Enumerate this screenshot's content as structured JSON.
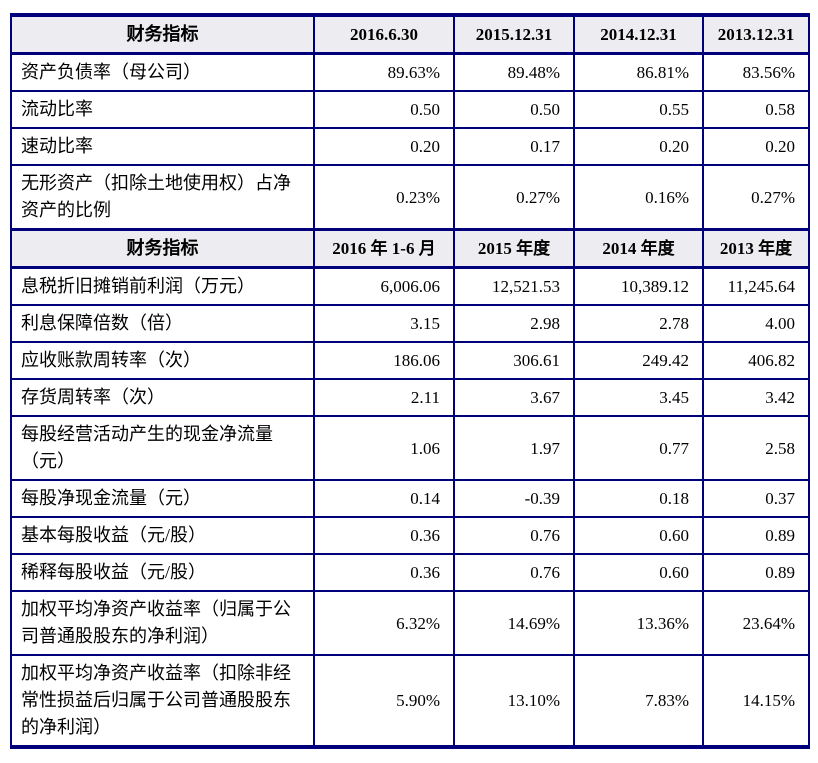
{
  "colors": {
    "border": "#00007d",
    "header_bg": "#ededf1",
    "text": "#000000",
    "background": "#ffffff"
  },
  "table": {
    "sections": [
      {
        "header": [
          "财务指标",
          "2016.6.30",
          "2015.12.31",
          "2014.12.31",
          "2013.12.31"
        ],
        "rows": [
          {
            "label": "资产负债率（母公司）",
            "values": [
              "89.63%",
              "89.48%",
              "86.81%",
              "83.56%"
            ]
          },
          {
            "label": "流动比率",
            "values": [
              "0.50",
              "0.50",
              "0.55",
              "0.58"
            ]
          },
          {
            "label": "速动比率",
            "values": [
              "0.20",
              "0.17",
              "0.20",
              "0.20"
            ]
          },
          {
            "label": "无形资产（扣除土地使用权）占净资产的比例",
            "values": [
              "0.23%",
              "0.27%",
              "0.16%",
              "0.27%"
            ]
          }
        ]
      },
      {
        "header": [
          "财务指标",
          "2016 年 1-6 月",
          "2015 年度",
          "2014 年度",
          "2013 年度"
        ],
        "rows": [
          {
            "label": "息税折旧摊销前利润（万元）",
            "values": [
              "6,006.06",
              "12,521.53",
              "10,389.12",
              "11,245.64"
            ]
          },
          {
            "label": "利息保障倍数（倍）",
            "values": [
              "3.15",
              "2.98",
              "2.78",
              "4.00"
            ]
          },
          {
            "label": "应收账款周转率（次）",
            "values": [
              "186.06",
              "306.61",
              "249.42",
              "406.82"
            ]
          },
          {
            "label": "存货周转率（次）",
            "values": [
              "2.11",
              "3.67",
              "3.45",
              "3.42"
            ]
          },
          {
            "label": "每股经营活动产生的现金净流量（元）",
            "values": [
              "1.06",
              "1.97",
              "0.77",
              "2.58"
            ]
          },
          {
            "label": "每股净现金流量（元）",
            "values": [
              "0.14",
              "-0.39",
              "0.18",
              "0.37"
            ]
          },
          {
            "label": "基本每股收益（元/股）",
            "values": [
              "0.36",
              "0.76",
              "0.60",
              "0.89"
            ]
          },
          {
            "label": "稀释每股收益（元/股）",
            "values": [
              "0.36",
              "0.76",
              "0.60",
              "0.89"
            ]
          },
          {
            "label": "加权平均净资产收益率（归属于公司普通股股东的净利润）",
            "values": [
              "6.32%",
              "14.69%",
              "13.36%",
              "23.64%"
            ]
          },
          {
            "label": "加权平均净资产收益率（扣除非经常性损益后归属于公司普通股股东的净利润）",
            "values": [
              "5.90%",
              "13.10%",
              "7.83%",
              "14.15%"
            ]
          }
        ]
      }
    ]
  }
}
